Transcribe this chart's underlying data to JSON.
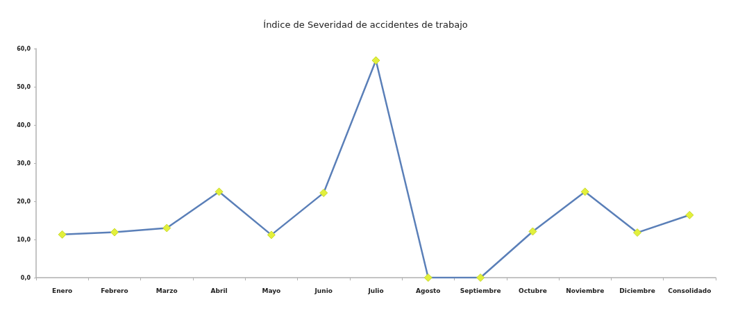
{
  "chart_data": {
    "type": "line",
    "title": "Índice de Severidad de accidentes de trabajo",
    "categories": [
      "Enero",
      "Febrero",
      "Marzo",
      "Abril",
      "Mayo",
      "Junio",
      "Julio",
      "Agosto",
      "Septiembre",
      "Octubre",
      "Noviembre",
      "Diciembre",
      "Consolidado"
    ],
    "series": [
      {
        "color": "#5a7fb8",
        "values": [
          11.3,
          11.9,
          13.0,
          22.5,
          11.2,
          22.2,
          56.9,
          0,
          0,
          12.1,
          22.5,
          11.8,
          16.4
        ]
      }
    ],
    "ylim": [
      0,
      60
    ],
    "yticks": [
      {
        "value": 0,
        "label": "0,0"
      },
      {
        "value": 10,
        "label": "10,0"
      },
      {
        "value": 20,
        "label": "20,0"
      },
      {
        "value": 30,
        "label": "30,0"
      },
      {
        "value": 40,
        "label": "40,0"
      },
      {
        "value": 50,
        "label": "50,0"
      },
      {
        "value": 60,
        "label": "60,0"
      }
    ],
    "grid": false,
    "marker": "diamond",
    "line_style": "solid"
  }
}
